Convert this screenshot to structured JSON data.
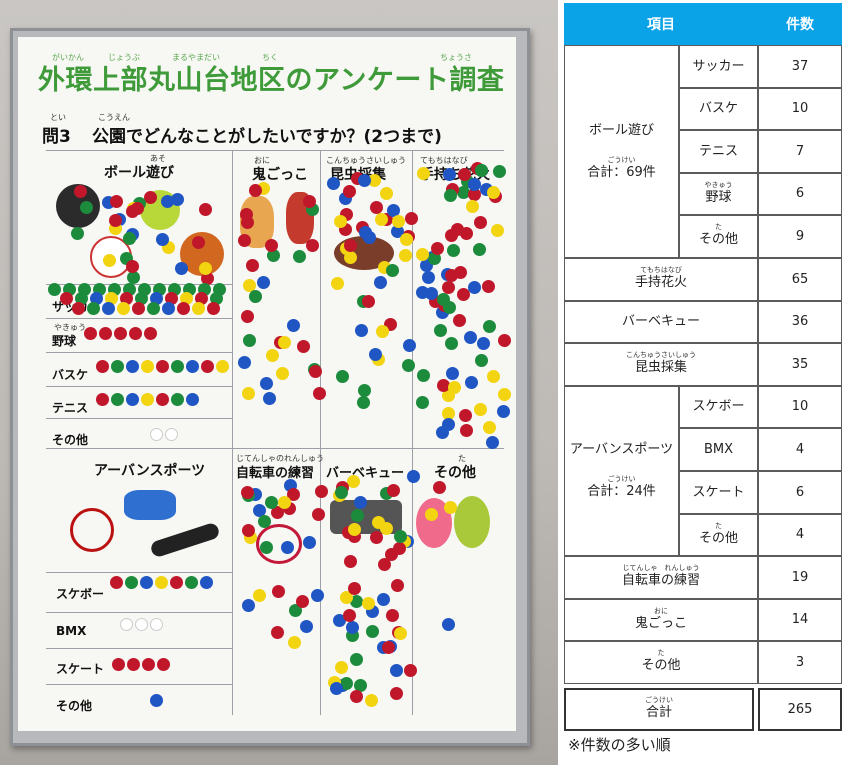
{
  "poster": {
    "title": "外環上部丸山台地区のアンケート調査",
    "title_ruby": [
      "がいかん",
      "じょうぶ",
      "まるやまだい",
      "ちく",
      "ちょうさ"
    ],
    "question_no": "問3",
    "question_no_ruby": "とい",
    "question": "公園でどんなことがしたいですか？(2つまで)",
    "question_ruby": "こうえん",
    "cells": [
      "ボール遊び",
      "鬼ごっこ",
      "昆虫採集",
      "手持ち花火",
      "アーバンスポーツ",
      "自転車の練習",
      "バーベキュー",
      "その他"
    ],
    "cell_ruby": [
      "あそ",
      "おに",
      "こんちゅうさいしゅう",
      "てもちはなび",
      "じてんしゃのれんしゅう",
      "た"
    ],
    "ball_rows": [
      "サッカー",
      "野球",
      "バスケ",
      "テニス",
      "その他"
    ],
    "ball_rows_ruby": "やきゅう",
    "urban_rows": [
      "スケボー",
      "BMX",
      "スケート",
      "その他"
    ]
  },
  "table": {
    "header_item": "項目",
    "header_item_ruby": "こうもく",
    "header_count": "件数",
    "header_count_ruby": "けんすう",
    "ball": {
      "label": "ボール遊び",
      "label_ruby": "あそ",
      "total": "合計：69件",
      "total_ruby": "ごうけい",
      "rows": [
        {
          "name": "サッカー",
          "count": "37",
          "ruby": ""
        },
        {
          "name": "バスケ",
          "count": "10",
          "ruby": ""
        },
        {
          "name": "テニス",
          "count": "7",
          "ruby": ""
        },
        {
          "name": "野球",
          "count": "6",
          "ruby": "やきゅう"
        },
        {
          "name": "その他",
          "count": "9",
          "ruby": "た"
        }
      ]
    },
    "single1": [
      {
        "name": "手持花火",
        "count": "65",
        "ruby": "てもちはなび"
      },
      {
        "name": "バーベキュー",
        "count": "36",
        "ruby": ""
      },
      {
        "name": "昆虫採集",
        "count": "35",
        "ruby": "こんちゅうさいしゅう"
      }
    ],
    "urban": {
      "label": "アーバンスポーツ",
      "total": "合計：24件",
      "total_ruby": "ごうけい",
      "rows": [
        {
          "name": "スケボー",
          "count": "10",
          "ruby": ""
        },
        {
          "name": "BMX",
          "count": "4",
          "ruby": ""
        },
        {
          "name": "スケート",
          "count": "6",
          "ruby": ""
        },
        {
          "name": "その他",
          "count": "4",
          "ruby": "た"
        }
      ]
    },
    "single2": [
      {
        "name": "自転車の練習",
        "count": "19",
        "ruby": "じてんしゃ　れんしゅう"
      },
      {
        "name": "鬼ごっこ",
        "count": "14",
        "ruby": "おに"
      },
      {
        "name": "その他",
        "count": "3",
        "ruby": "た"
      }
    ],
    "total": {
      "name": "合計",
      "count": "265",
      "ruby": "ごうけい"
    }
  },
  "note": "※件数の多い順",
  "colors": {
    "header": "#0aa3e8",
    "title_green": "#3f9b3a",
    "red": "#c0182a",
    "green": "#1c8b3c",
    "blue": "#1f56c4",
    "yellow": "#f2d411"
  }
}
